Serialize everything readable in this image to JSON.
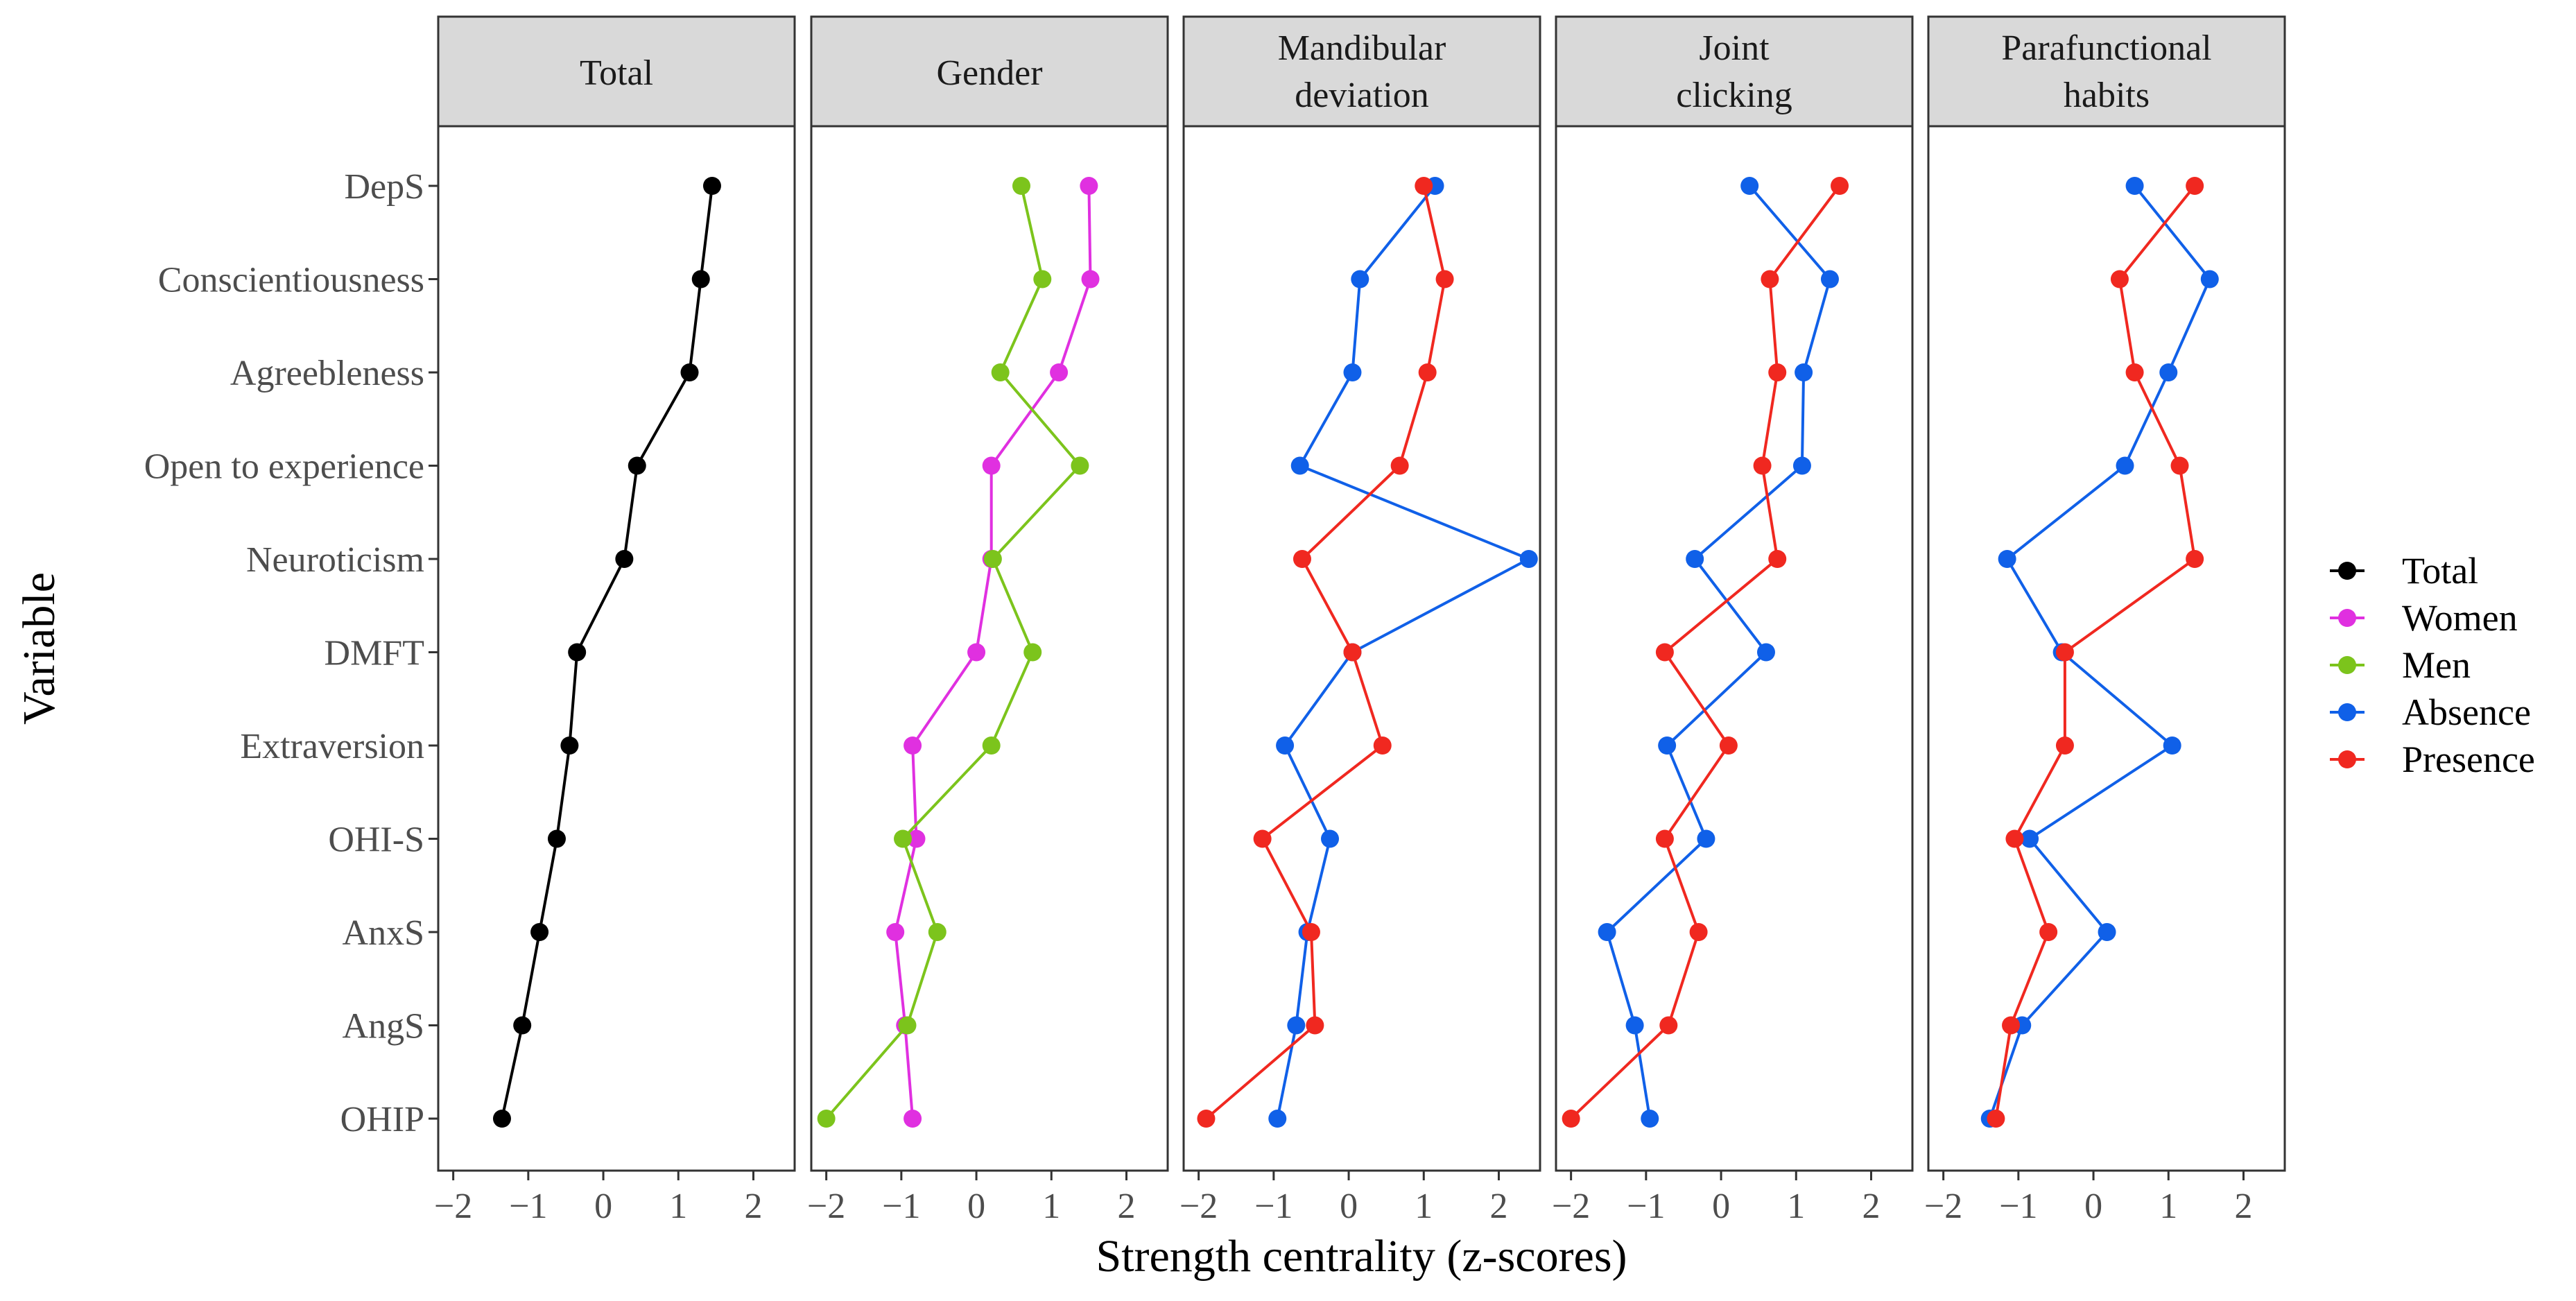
{
  "chart_data": {
    "type": "line",
    "xlabel": "Strength centrality (z-scores)",
    "ylabel": "Variable",
    "xlim": [
      -2.2,
      2.55
    ],
    "x_ticks": [
      -2,
      -1,
      0,
      1,
      2
    ],
    "x_tick_labels": [
      "−2",
      "−1",
      "0",
      "1",
      "2"
    ],
    "variables": [
      "DepS",
      "Conscientiousness",
      "Agreebleness",
      "Open to experience",
      "Neuroticism",
      "DMFT",
      "Extraversion",
      "OHI-S",
      "AnxS",
      "AngS",
      "OHIP"
    ],
    "legend_position": "right",
    "legend": [
      {
        "name": "Total",
        "color": "#000000"
      },
      {
        "name": "Women",
        "color": "#E030E0"
      },
      {
        "name": "Men",
        "color": "#7CC41C"
      },
      {
        "name": "Absence",
        "color": "#1060E8"
      },
      {
        "name": "Presence",
        "color": "#F02820"
      }
    ],
    "panels": [
      {
        "title": [
          "Total"
        ],
        "series": [
          {
            "name": "Total",
            "color": "#000000",
            "values": [
              1.45,
              1.3,
              1.15,
              0.45,
              0.28,
              -0.35,
              -0.45,
              -0.62,
              -0.85,
              -1.08,
              -1.35
            ]
          }
        ]
      },
      {
        "title": [
          "Gender"
        ],
        "series": [
          {
            "name": "Women",
            "color": "#E030E0",
            "values": [
              1.5,
              1.52,
              1.1,
              0.2,
              0.2,
              0.0,
              -0.85,
              -0.8,
              -1.08,
              -0.95,
              -0.85
            ]
          },
          {
            "name": "Men",
            "color": "#7CC41C",
            "values": [
              0.6,
              0.88,
              0.32,
              1.38,
              0.22,
              0.75,
              0.2,
              -0.98,
              -0.52,
              -0.92,
              -2.0
            ]
          }
        ]
      },
      {
        "title": [
          "Mandibular",
          "deviation"
        ],
        "series": [
          {
            "name": "Absence",
            "color": "#1060E8",
            "values": [
              1.15,
              0.15,
              0.05,
              -0.65,
              2.4,
              0.05,
              -0.85,
              -0.25,
              -0.55,
              -0.7,
              -0.95
            ]
          },
          {
            "name": "Presence",
            "color": "#F02820",
            "values": [
              1.0,
              1.28,
              1.05,
              0.68,
              -0.62,
              0.05,
              0.45,
              -1.15,
              -0.5,
              -0.45,
              -1.9
            ]
          }
        ]
      },
      {
        "title": [
          "Joint",
          "clicking"
        ],
        "series": [
          {
            "name": "Absence",
            "color": "#1060E8",
            "values": [
              0.38,
              1.45,
              1.1,
              1.08,
              -0.35,
              0.6,
              -0.72,
              -0.2,
              -1.52,
              -1.15,
              -0.95
            ]
          },
          {
            "name": "Presence",
            "color": "#F02820",
            "values": [
              1.58,
              0.65,
              0.75,
              0.55,
              0.75,
              -0.75,
              0.1,
              -0.75,
              -0.3,
              -0.7,
              -2.0
            ]
          }
        ]
      },
      {
        "title": [
          "Parafunctional",
          "habits"
        ],
        "series": [
          {
            "name": "Absence",
            "color": "#1060E8",
            "values": [
              0.55,
              1.55,
              1.0,
              0.42,
              -1.15,
              -0.42,
              1.05,
              -0.85,
              0.18,
              -0.95,
              -1.38
            ]
          },
          {
            "name": "Presence",
            "color": "#F02820",
            "values": [
              1.35,
              0.35,
              0.55,
              1.15,
              1.35,
              -0.38,
              -0.38,
              -1.05,
              -0.6,
              -1.1,
              -1.3
            ]
          }
        ]
      }
    ]
  }
}
